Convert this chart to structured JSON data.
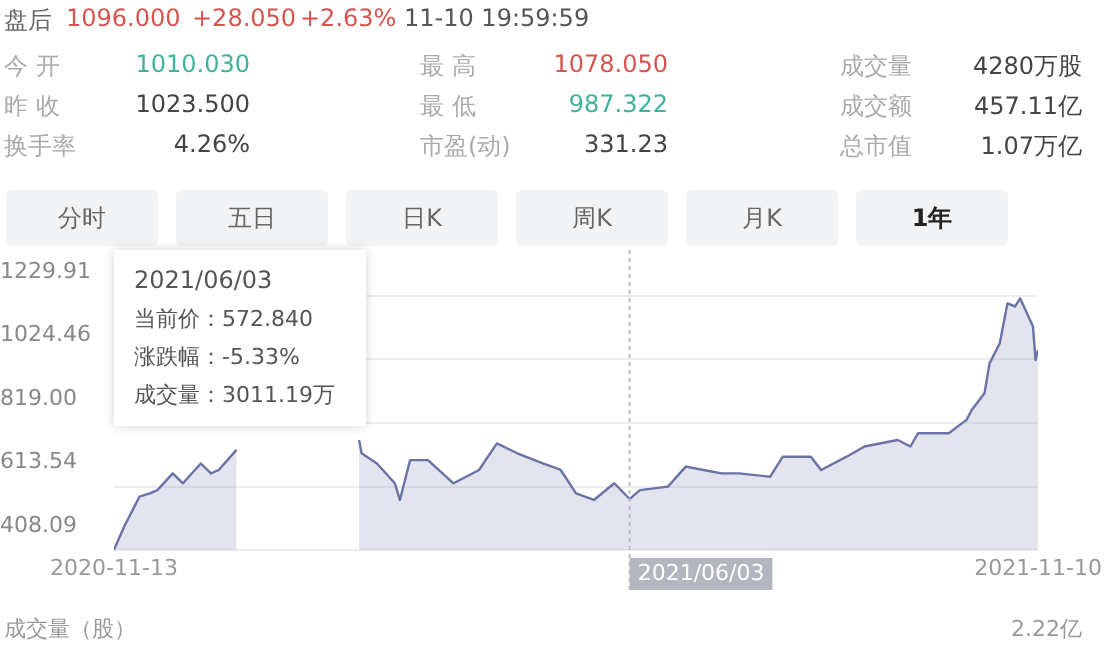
{
  "chart_data": [
    {
      "type": "other",
      "annotations": [
        "盘后",
        "1096.000",
        "+28.050",
        "+2.63%",
        "11-10 19:59:59",
        "今 开",
        "1010.030",
        "最 高",
        "1078.050",
        "成交量",
        "4280万股",
        "昨 收",
        "1023.500",
        "最 低",
        "987.322",
        "成交额",
        "457.11亿",
        "换手率",
        "4.26%",
        "市盈(动)",
        "331.23",
        "总市值",
        "1.07万亿",
        "分时",
        "五日",
        "日K",
        "周K",
        "月K",
        "1年"
      ]
    },
    {
      "type": "area",
      "x": [
        "2020-11-13",
        "2020-11-17",
        "2020-11-23",
        "2020-11-27",
        "2020-11-30",
        "2020-12-06",
        "2020-12-10",
        "2020-12-17",
        "2020-12-21",
        "2020-12-24",
        "2020-12-31",
        "2021-01-15",
        "2021-02-17",
        "2021-02-18",
        "2021-02-24",
        "2021-03-03",
        "2021-03-05",
        "2021-03-09",
        "2021-03-16",
        "2021-03-26",
        "2021-04-05",
        "2021-04-12",
        "2021-04-20",
        "2021-04-30",
        "2021-05-07",
        "2021-05-13",
        "2021-05-20",
        "2021-05-28",
        "2021-06-03",
        "2021-06-07",
        "2021-06-18",
        "2021-06-25",
        "2021-07-02",
        "2021-07-09",
        "2021-07-16",
        "2021-07-28",
        "2021-08-02",
        "2021-08-13",
        "2021-08-17",
        "2021-08-27",
        "2021-09-03",
        "2021-09-16",
        "2021-09-21",
        "2021-09-24",
        "2021-10-06",
        "2021-10-13",
        "2021-10-15",
        "2021-10-20",
        "2021-10-22",
        "2021-10-26",
        "2021-10-29",
        "2021-11-01",
        "2021-11-03",
        "2021-11-08",
        "2021-11-09",
        "2021-11-10"
      ],
      "series": [
        {
          "color": "#6a72a6",
          "values": [
            409,
            484,
            581,
            591,
            602,
            656,
            624,
            688,
            656,
            667,
            732,
            null,
            764,
            721,
            688,
            624,
            570,
            699,
            699,
            624,
            667,
            753,
            721,
            688,
            667,
            591,
            570,
            624,
            573,
            602,
            613,
            678,
            667,
            656,
            656,
            645,
            710,
            710,
            667,
            710,
            743,
            764,
            743,
            786,
            786,
            829,
            861,
            915,
            1012,
            1077,
            1206,
            1196,
            1222,
            1131,
            1023,
            1055
          ]
        }
      ],
      "xlim": [
        "2020-11-13",
        "2021-11-10"
      ],
      "xticks": [
        "2020-11-13",
        "2021-11-10"
      ],
      "ylim": [
        408.09,
        1229.91
      ],
      "yticks": [
        408.09,
        613.54,
        {
          "value": 819,
          "label": "819.00"
        },
        1024.46,
        1229.91
      ],
      "grid": "y",
      "legend": false,
      "ref_lines": [
        {
          "axis": "x",
          "value": "2021-06-03",
          "label": "2021/06/03",
          "color": "#b9bcc4",
          "line_style": "dotted"
        }
      ],
      "annotations": [
        "2021/06/03\n当前价：572.840\n涨跌幅：-5.33%\n成交量：3011.19万",
        "成交量（股）",
        "2.22亿"
      ]
    }
  ]
}
